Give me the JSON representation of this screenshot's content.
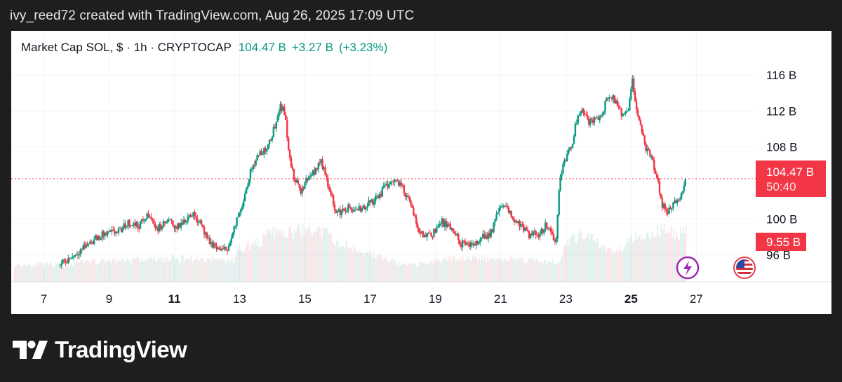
{
  "attribution": "ivy_reed72 created with TradingView.com, Aug 26, 2025 17:09 UTC",
  "legend": {
    "symbol": "Market Cap SOL, $ · 1h · CRYPTOCAP",
    "price": "104.47 B",
    "change": "+3.27 B",
    "change_pct": "(+3.23%)"
  },
  "price_label": {
    "value": "104.47 B",
    "countdown": "50:40"
  },
  "volume_label": "9.55 B",
  "brand": "TradingView",
  "colors": {
    "up": "#089981",
    "down": "#f23645",
    "label_red": "#f23645",
    "panel_bg": "#ffffff",
    "page_bg": "#1e1e1e"
  },
  "icons": [
    "lightning-icon",
    "us-flag-icon"
  ],
  "chart_data": {
    "type": "candlestick",
    "title": "Market Cap SOL, $ · 1h · CRYPTOCAP",
    "x_unit": "day of August 2025",
    "y_unit": "USD billions",
    "x_ticks": [
      {
        "label": "7",
        "value": 7,
        "bold": false
      },
      {
        "label": "9",
        "value": 9,
        "bold": false
      },
      {
        "label": "11",
        "value": 11,
        "bold": true
      },
      {
        "label": "13",
        "value": 13,
        "bold": false
      },
      {
        "label": "15",
        "value": 15,
        "bold": false
      },
      {
        "label": "17",
        "value": 17,
        "bold": false
      },
      {
        "label": "19",
        "value": 19,
        "bold": false
      },
      {
        "label": "21",
        "value": 21,
        "bold": false
      },
      {
        "label": "23",
        "value": 23,
        "bold": false
      },
      {
        "label": "25",
        "value": 25,
        "bold": true
      },
      {
        "label": "27",
        "value": 27,
        "bold": false
      }
    ],
    "y_ticks": [
      {
        "label": "116 B",
        "value": 116
      },
      {
        "label": "112 B",
        "value": 112
      },
      {
        "label": "108 B",
        "value": 108
      },
      {
        "label": "100 B",
        "value": 100
      },
      {
        "label": "96 B",
        "value": 96
      }
    ],
    "ylim": [
      95.5,
      117.8
    ],
    "xlim": [
      6.0,
      28.8
    ],
    "last_price": 104.47,
    "last_volume": 9.55,
    "grid": true,
    "price_path": [
      [
        7.5,
        94.8
      ],
      [
        8.0,
        96.2
      ],
      [
        8.4,
        97.4
      ],
      [
        8.8,
        98.2
      ],
      [
        9.3,
        98.6
      ],
      [
        9.6,
        99.6
      ],
      [
        9.9,
        99.2
      ],
      [
        10.2,
        100.4
      ],
      [
        10.5,
        98.9
      ],
      [
        10.8,
        99.8
      ],
      [
        11.1,
        99.0
      ],
      [
        11.5,
        100.6
      ],
      [
        11.8,
        99.8
      ],
      [
        12.0,
        97.6
      ],
      [
        12.3,
        96.8
      ],
      [
        12.5,
        96.4
      ],
      [
        12.7,
        97.2
      ],
      [
        12.9,
        99.6
      ],
      [
        13.1,
        102.0
      ],
      [
        13.3,
        104.8
      ],
      [
        13.5,
        106.8
      ],
      [
        13.7,
        107.4
      ],
      [
        13.9,
        108.2
      ],
      [
        14.1,
        110.6
      ],
      [
        14.25,
        112.8
      ],
      [
        14.4,
        111.5
      ],
      [
        14.55,
        106.2
      ],
      [
        14.7,
        104.2
      ],
      [
        14.9,
        103.0
      ],
      [
        15.1,
        104.8
      ],
      [
        15.3,
        105.2
      ],
      [
        15.45,
        106.5
      ],
      [
        15.6,
        105.6
      ],
      [
        15.8,
        102.5
      ],
      [
        16.0,
        100.6
      ],
      [
        16.3,
        101.2
      ],
      [
        16.6,
        100.8
      ],
      [
        16.9,
        101.6
      ],
      [
        17.2,
        102.2
      ],
      [
        17.5,
        103.8
      ],
      [
        17.8,
        104.4
      ],
      [
        18.0,
        103.4
      ],
      [
        18.2,
        102.0
      ],
      [
        18.4,
        99.6
      ],
      [
        18.6,
        98.2
      ],
      [
        18.9,
        98.4
      ],
      [
        19.2,
        99.6
      ],
      [
        19.5,
        98.8
      ],
      [
        19.8,
        97.2
      ],
      [
        20.1,
        96.9
      ],
      [
        20.4,
        97.9
      ],
      [
        20.7,
        98.4
      ],
      [
        20.9,
        100.6
      ],
      [
        21.1,
        101.6
      ],
      [
        21.3,
        100.4
      ],
      [
        21.6,
        99.4
      ],
      [
        21.9,
        98.0
      ],
      [
        22.2,
        98.4
      ],
      [
        22.4,
        99.4
      ],
      [
        22.6,
        98.4
      ],
      [
        22.7,
        96.8
      ],
      [
        22.8,
        104.2
      ],
      [
        23.0,
        106.8
      ],
      [
        23.2,
        108.6
      ],
      [
        23.35,
        111.4
      ],
      [
        23.5,
        112.4
      ],
      [
        23.7,
        110.8
      ],
      [
        23.9,
        111.0
      ],
      [
        24.1,
        111.6
      ],
      [
        24.3,
        113.6
      ],
      [
        24.5,
        113.2
      ],
      [
        24.7,
        111.6
      ],
      [
        24.9,
        111.8
      ],
      [
        25.05,
        115.4
      ],
      [
        25.15,
        112.8
      ],
      [
        25.3,
        110.0
      ],
      [
        25.45,
        107.8
      ],
      [
        25.6,
        106.8
      ],
      [
        25.8,
        104.8
      ],
      [
        25.95,
        101.4
      ],
      [
        26.15,
        100.8
      ],
      [
        26.35,
        101.8
      ],
      [
        26.55,
        102.6
      ],
      [
        26.7,
        104.47
      ]
    ],
    "volume_path": [
      [
        6.1,
        2.8
      ],
      [
        7.5,
        2.8
      ],
      [
        8.3,
        3.2
      ],
      [
        9.0,
        3.5
      ],
      [
        10.0,
        3.6
      ],
      [
        11.0,
        3.8
      ],
      [
        12.0,
        3.7
      ],
      [
        12.8,
        3.5
      ],
      [
        13.0,
        5.5
      ],
      [
        13.5,
        6.2
      ],
      [
        14.0,
        8.0
      ],
      [
        14.5,
        7.8
      ],
      [
        15.0,
        8.5
      ],
      [
        15.6,
        8.2
      ],
      [
        16.0,
        6.3
      ],
      [
        17.0,
        4.6
      ],
      [
        18.0,
        2.7
      ],
      [
        18.6,
        2.9
      ],
      [
        19.2,
        3.6
      ],
      [
        20.0,
        3.9
      ],
      [
        21.0,
        3.7
      ],
      [
        22.0,
        3.6
      ],
      [
        22.8,
        3.0
      ],
      [
        23.0,
        6.4
      ],
      [
        23.5,
        7.8
      ],
      [
        24.0,
        6.2
      ],
      [
        24.5,
        4.6
      ],
      [
        25.0,
        7.5
      ],
      [
        25.5,
        7.8
      ],
      [
        26.0,
        8.6
      ],
      [
        26.5,
        8.0
      ],
      [
        26.7,
        9.55
      ]
    ]
  }
}
